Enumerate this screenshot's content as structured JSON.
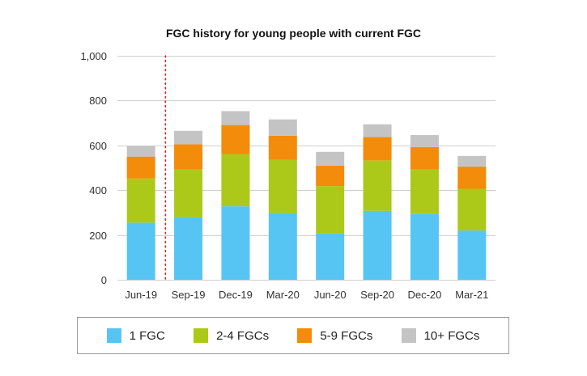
{
  "chart_data": {
    "type": "bar",
    "stacked": true,
    "title": "FGC history for young people with current FGC",
    "xlabel": "",
    "ylabel": "",
    "ylim": [
      0,
      1000
    ],
    "yticks": [
      0,
      200,
      400,
      600,
      800,
      1000
    ],
    "ytick_labels": [
      "0",
      "200",
      "400",
      "600",
      "800",
      "1,000"
    ],
    "categories": [
      "Jun-19",
      "Sep-19",
      "Dec-19",
      "Mar-20",
      "Jun-20",
      "Sep-20",
      "Dec-20",
      "Mar-21"
    ],
    "series": [
      {
        "name": "1 FGC",
        "color": "#56c5f4",
        "values": [
          255,
          280,
          328,
          298,
          208,
          308,
          295,
          220
        ]
      },
      {
        "name": "2-4 FGCs",
        "color": "#acc919",
        "values": [
          197,
          212,
          233,
          237,
          210,
          225,
          198,
          186
        ]
      },
      {
        "name": "5-9 FGCs",
        "color": "#f28c0a",
        "values": [
          98,
          113,
          130,
          108,
          92,
          104,
          100,
          99
        ]
      },
      {
        "name": "10+ FGCs",
        "color": "#c4c4c4",
        "values": [
          47,
          60,
          62,
          73,
          61,
          57,
          53,
          48
        ]
      }
    ],
    "grid": true,
    "legend_position": "bottom",
    "annotation": {
      "type": "vertical-dotted-line",
      "between": [
        "Jun-19",
        "Sep-19"
      ],
      "color": "#e02020"
    }
  }
}
